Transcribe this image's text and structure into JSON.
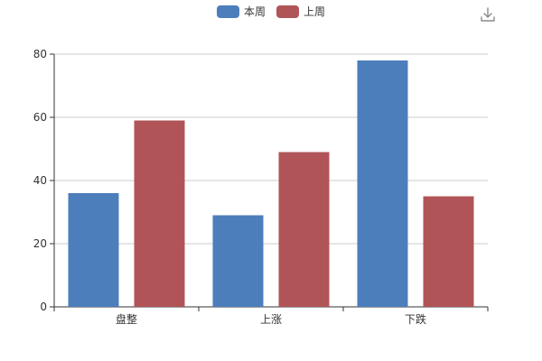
{
  "chart_data": {
    "type": "bar",
    "categories": [
      "盘整",
      "上涨",
      "下跌"
    ],
    "series": [
      {
        "name": "本周",
        "values": [
          36,
          29,
          78
        ],
        "color": "#4c7ebc"
      },
      {
        "name": "上周",
        "values": [
          59,
          49,
          35
        ],
        "color": "#b05458"
      }
    ],
    "y_ticks": [
      0,
      20,
      40,
      60,
      80
    ],
    "ylim": [
      0,
      80
    ],
    "grid": true,
    "legend_position": "top-center"
  },
  "toolbar": {
    "download_icon": "download-icon"
  }
}
